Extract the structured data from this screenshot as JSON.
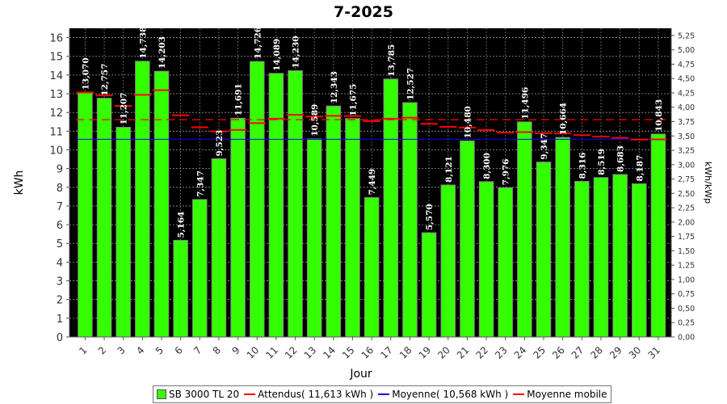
{
  "chart_data": {
    "type": "bar",
    "title": "7-2025",
    "xlabel": "Jour",
    "ylabel": "kWh",
    "y2label": "kWh/kWp",
    "ylim": [
      0,
      16.5
    ],
    "y2lim": [
      0,
      5.375
    ],
    "y2ticks": [
      "0,00",
      "0,25",
      "0,50",
      "0,75",
      "1,00",
      "1,25",
      "1,50",
      "1,75",
      "2,00",
      "2,25",
      "2,50",
      "2,75",
      "3,00",
      "3,25",
      "3,50",
      "3,75",
      "4,00",
      "4,25",
      "4,50",
      "4,75",
      "5,00",
      "5,25"
    ],
    "grid": true,
    "legend_position": "bottom",
    "categories": [
      "1",
      "2",
      "3",
      "4",
      "5",
      "6",
      "7",
      "8",
      "9",
      "10",
      "11",
      "12",
      "13",
      "14",
      "15",
      "16",
      "17",
      "18",
      "19",
      "20",
      "21",
      "22",
      "23",
      "24",
      "25",
      "26",
      "27",
      "28",
      "29",
      "30",
      "31"
    ],
    "series": [
      {
        "name": "SB 3000 TL 20",
        "color": "#33ff00",
        "values": [
          13.07,
          12.757,
          11.207,
          14.738,
          14.203,
          5.164,
          7.347,
          9.523,
          11.691,
          14.726,
          14.089,
          14.23,
          10.589,
          12.343,
          11.675,
          7.449,
          13.785,
          12.527,
          5.57,
          8.121,
          10.48,
          8.3,
          7.976,
          11.496,
          9.347,
          10.664,
          8.316,
          8.519,
          8.683,
          8.187,
          10.843
        ],
        "labels": [
          "13,070",
          "12,757",
          "11,207",
          "14,738",
          "14,203",
          "5,164",
          "7,347",
          "9,523",
          "11,691",
          "14,726",
          "14,089",
          "14,230",
          "10,589",
          "12,343",
          "11,675",
          "7,449",
          "13,785",
          "12,527",
          "5,570",
          "8,121",
          "10,480",
          "8,300",
          "7,976",
          "11,496",
          "9,347",
          "10,664",
          "8,316",
          "8,519",
          "8,683",
          "8,187",
          "10,843"
        ]
      },
      {
        "name": "Attendus( 11,613 kWh )",
        "color": "#ff0000",
        "value": 11.613
      },
      {
        "name": "Moyenne( 10,568 kWh )",
        "color": "#0000ff",
        "value": 10.568
      },
      {
        "name": "Moyenne mobile",
        "color": "#ff0000",
        "values": [
          13.07,
          12.91,
          12.35,
          12.94,
          13.19,
          11.85,
          11.21,
          10.99,
          11.07,
          11.43,
          11.67,
          11.88,
          11.78,
          11.82,
          11.81,
          11.54,
          11.67,
          11.72,
          11.39,
          11.23,
          11.19,
          11.06,
          10.92,
          10.95,
          10.89,
          10.88,
          10.79,
          10.71,
          10.64,
          10.55,
          10.56
        ]
      }
    ]
  }
}
